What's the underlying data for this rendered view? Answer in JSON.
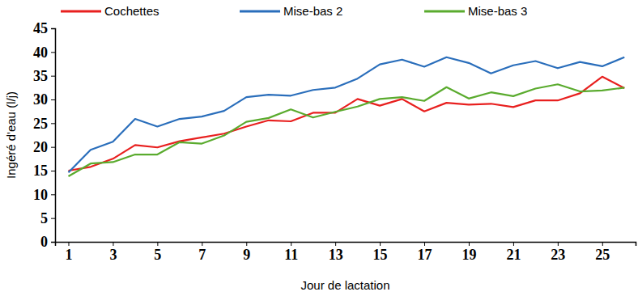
{
  "chart_data": {
    "type": "line",
    "x_label": "Jour de lactation",
    "y_label": "Ingéré d'eau (l/j)",
    "x": [
      1,
      2,
      3,
      4,
      5,
      6,
      7,
      8,
      9,
      10,
      11,
      12,
      13,
      14,
      15,
      16,
      17,
      18,
      19,
      20,
      21,
      22,
      23,
      24,
      25,
      26
    ],
    "series": [
      {
        "name": "Cochettes",
        "color": "#e8201f",
        "values": [
          15,
          15.8,
          17.5,
          20.4,
          19.9,
          21.2,
          22,
          22.8,
          24.3,
          25.6,
          25.4,
          27.2,
          27.2,
          30.1,
          28.7,
          30.1,
          27.5,
          29.3,
          28.9,
          29.1,
          28.4,
          29.8,
          29.8,
          31.3,
          34.8,
          32.4
        ]
      },
      {
        "name": "Mise-bas 2",
        "color": "#2a6ebb",
        "values": [
          14.6,
          19.4,
          21.1,
          25.9,
          24.3,
          25.9,
          26.4,
          27.6,
          30.5,
          31,
          30.8,
          32,
          32.5,
          34.4,
          37.4,
          38.4,
          36.9,
          38.9,
          37.7,
          35.5,
          37.2,
          38.1,
          36.6,
          37.9,
          37,
          38.9
        ]
      },
      {
        "name": "Mise-bas 3",
        "color": "#5aab2e",
        "values": [
          13.8,
          16.5,
          16.8,
          18.4,
          18.4,
          21,
          20.7,
          22.4,
          25.3,
          26.1,
          27.9,
          26.2,
          27.4,
          28.5,
          30.1,
          30.5,
          29.7,
          32.6,
          30.2,
          31.5,
          30.7,
          32.3,
          33.2,
          31.7,
          31.9,
          32.5
        ]
      }
    ],
    "xlim": [
      0.4,
      26.5
    ],
    "xticks": [
      1,
      3,
      5,
      7,
      9,
      11,
      13,
      15,
      17,
      19,
      21,
      23,
      25
    ],
    "ylim": [
      0,
      45
    ],
    "yticks": [
      0,
      5,
      10,
      15,
      20,
      25,
      30,
      35,
      40,
      45
    ],
    "grid": false,
    "legend": "top"
  }
}
